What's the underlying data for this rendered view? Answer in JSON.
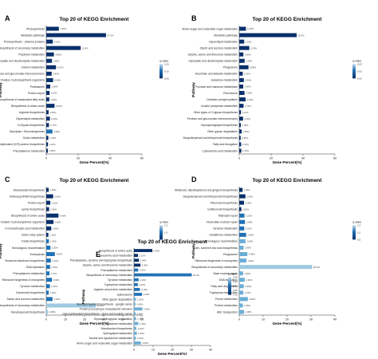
{
  "colors": {
    "dark": "#08306b",
    "mid": "#2171b5",
    "light": "#6baed6",
    "pale": "#9ecae1",
    "axis": "#333333"
  },
  "chart_data": [
    {
      "panel": "A",
      "type": "bar",
      "orientation": "horizontal",
      "title": "Top 20 of KEGG Enrichment",
      "xlabel": "Gene Percent(%)",
      "ylabel": "Pathway",
      "xlim": [
        0,
        60
      ],
      "xticks": [
        "0",
        "20",
        "40",
        "60"
      ],
      "legend_title": "q-value",
      "legend_ticks": [
        "0.05",
        "0.10",
        "0.15"
      ],
      "categories": [
        "Photosynthesis",
        "Metabolic pathways",
        "Photosynthesis - antenna proteins",
        "Biosynthesis of secondary metabolites",
        "Porphyrin metabolism",
        "Glyoxylate and dicarboxylate metabolism",
        "Carbon metabolism",
        "Pentose and glucuronate interconversions",
        "Carbon fixation in photosynthetic organisms",
        "Proteasome",
        "Protein export",
        "Biosynthesis of unsaturated fatty acids",
        "Biosynthesis of amino acids",
        "Arginine biosynthesis",
        "Glycerolipid metabolism",
        "N-Glycan biosynthesis",
        "Glycolysis / Gluconeogenesis",
        "Sulfur metabolism",
        "Glycosylphosphatidylinositol (GPI)-anchor biosynthesis",
        "Phenylalanine metabolism"
      ],
      "values": [
        7.9,
        37.5,
        4.1,
        21.6,
        4.8,
        3.6,
        6.1,
        3.4,
        4.3,
        2.5,
        2.1,
        1.9,
        5.2,
        1.5,
        2.3,
        1.7,
        3.9,
        1.3,
        1.1,
        1.0
      ],
      "value_labels": [
        "7.90%",
        "37.5%",
        "4.10%",
        "21.6%",
        "4.80%",
        "3.60%",
        "6.10%",
        "3.40%",
        "4.30%",
        "2.50%",
        "2.10%",
        "1.90%",
        "5.20%",
        "1.50%",
        "2.30%",
        "1.70%",
        "3.90%",
        "1.30%",
        "1.10%",
        "1.00%"
      ],
      "shades": [
        "dark",
        "dark",
        "dark",
        "dark",
        "dark",
        "dark",
        "dark",
        "dark",
        "dark",
        "dark",
        "dark",
        "dark",
        "dark",
        "dark",
        "dark",
        "dark",
        "mid",
        "dark",
        "dark",
        "dark"
      ]
    },
    {
      "panel": "B",
      "type": "bar",
      "orientation": "horizontal",
      "title": "Top 20 of KEGG Enrichment",
      "xlabel": "Gene Percent(%)",
      "ylabel": "Pathway",
      "xlim": [
        0,
        60
      ],
      "xticks": [
        "0",
        "20",
        "40",
        "60"
      ],
      "legend_title": "q-value",
      "legend_ticks": [
        "0.01",
        "0.02",
        "0.03"
      ],
      "categories": [
        "Amino sugar and nucleotide sugar metabolism",
        "Metabolic pathways",
        "Glycerolipid metabolism",
        "Starch and sucrose metabolism",
        "Glycine, serine and threonine metabolism",
        "Glyoxylate and dicarboxylate metabolism",
        "Phagosome",
        "Ascorbate and aldarate metabolism",
        "Galactose metabolism",
        "Fructose and mannose metabolism",
        "Peroxisome",
        "Oxidative phosphorylation",
        "Inositol phosphate metabolism",
        "Other types of O-glycan biosynthesis",
        "Pentose and glucuronate interconversions",
        "Glycosphingolipid biosynthesis",
        "Other glycan degradation",
        "Sesquiterpenoid and triterpenoid biosynthesis",
        "Fatty acid elongation",
        "Cyanoamino acid metabolism"
      ],
      "values": [
        4.2,
        36.0,
        3.1,
        6.3,
        2.6,
        3.4,
        5.8,
        2.2,
        2.9,
        2.5,
        3.3,
        4.0,
        2.7,
        1.1,
        2.4,
        1.0,
        1.5,
        0.9,
        1.2,
        1.3
      ],
      "value_labels": [
        "4.20%",
        "36.0%",
        "3.10%",
        "6.30%",
        "2.60%",
        "3.40%",
        "5.80%",
        "2.20%",
        "2.90%",
        "2.50%",
        "3.30%",
        "4.00%",
        "2.70%",
        "1.10%",
        "2.40%",
        "1.00%",
        "1.50%",
        "0.90%",
        "1.20%",
        "1.30%"
      ],
      "shades": [
        "dark",
        "dark",
        "dark",
        "dark",
        "dark",
        "dark",
        "dark",
        "dark",
        "dark",
        "dark",
        "dark",
        "dark",
        "dark",
        "dark",
        "dark",
        "dark",
        "dark",
        "dark",
        "dark",
        "dark"
      ]
    },
    {
      "panel": "C",
      "type": "bar",
      "orientation": "horizontal",
      "title": "Top 20 of KEGG Enrichment",
      "xlabel": "Gene Percent(%)",
      "ylabel": "Pathway",
      "xlim": [
        0,
        50
      ],
      "xticks": [
        "0",
        "10",
        "20",
        "30",
        "40",
        "50"
      ],
      "legend_title": "q-value",
      "legend_ticks": [
        "0.5",
        "1.0",
        "1.5"
      ],
      "categories": [
        "Monobactam biosynthesis",
        "Aminoacyl-tRNA biosynthesis",
        "Protein export",
        "Lysine biosynthesis",
        "Biosynthesis of amino acids",
        "Carbon fixation in photosynthetic organisms",
        "2-Oxocarboxylic acid metabolism",
        "Sulfur relay system",
        "Folate biosynthesis",
        "Homologous recombination",
        "Endocytosis",
        "Terpenoid backbone biosynthesis",
        "DNA replication",
        "Phenylalanine metabolism",
        "Ribosome biogenesis in eukaryotes",
        "Tyrosine metabolism",
        "Carotenoid biosynthesis",
        "Starch and sucrose metabolism",
        "Biosynthesis of secondary metabolites",
        "Monoterpenoid biosynthesis"
      ],
      "values": [
        1.3,
        3.6,
        2.1,
        1.5,
        6.4,
        3.8,
        2.6,
        1.1,
        1.4,
        2.2,
        4.5,
        2.4,
        2.0,
        1.7,
        3.0,
        1.9,
        1.3,
        3.3,
        25.9,
        0.9
      ],
      "value_labels": [
        "1.30%",
        "3.60%",
        "2.10%",
        "1.50%",
        "6.40%",
        "3.80%",
        "2.60%",
        "1.10%",
        "1.40%",
        "2.20%",
        "4.50%",
        "2.40%",
        "2.00%",
        "1.70%",
        "3.00%",
        "1.90%",
        "1.30%",
        "3.30%",
        "25.9%",
        "0.90%"
      ],
      "shades": [
        "dark",
        "dark",
        "dark",
        "dark",
        "dark",
        "dark",
        "dark",
        "dark",
        "mid",
        "mid",
        "mid",
        "mid",
        "mid",
        "mid",
        "mid",
        "mid",
        "mid",
        "mid",
        "pale",
        "pale"
      ]
    },
    {
      "panel": "D",
      "type": "bar",
      "orientation": "horizontal",
      "title": "Top 20 of KEGG Enrichment",
      "xlabel": "Gene Percent(%)",
      "ylabel": "Pathway",
      "xlim": [
        0,
        40
      ],
      "xticks": [
        "0",
        "10",
        "20",
        "30",
        "40"
      ],
      "legend_title": "q-value",
      "legend_ticks": [
        "0.5",
        "1.0",
        "1.5"
      ],
      "categories": [
        "Stilbenoid, diarylheptanoid and gingerol biosynthesis",
        "Sesquiterpenoid and triterpenoid biosynthesis",
        "Flavonoid biosynthesis",
        "Isoflavonoid biosynthesis",
        "Mismatch repair",
        "Nucleotide excision repair",
        "Tyrosine metabolism",
        "Glutathione metabolism",
        "Homologous recombination",
        "Cutin, suberine and wax biosynthesis",
        "Phagosome",
        "Ribosome biogenesis in eukaryotes",
        "Biosynthesis of secondary metabolites",
        "Base excision repair",
        "DNA replication",
        "Fatty acid degradation",
        "Tryptophan metabolism",
        "Purine metabolism",
        "Proline metabolism",
        "ABC transporters"
      ],
      "values": [
        1.4,
        2.6,
        2.0,
        0.9,
        2.2,
        2.4,
        2.1,
        2.9,
        2.6,
        1.8,
        3.4,
        3.0,
        30.5,
        1.6,
        2.3,
        1.9,
        1.7,
        3.6,
        1.5,
        2.0
      ],
      "value_labels": [
        "1.40%",
        "2.60%",
        "2.00%",
        "0.90%",
        "2.20%",
        "2.40%",
        "2.10%",
        "2.90%",
        "2.60%",
        "1.80%",
        "3.40%",
        "3.00%",
        "30.5%",
        "1.60%",
        "2.30%",
        "1.90%",
        "1.70%",
        "3.60%",
        "1.50%",
        "2.00%"
      ],
      "shades": [
        "dark",
        "dark",
        "dark",
        "dark",
        "mid",
        "mid",
        "mid",
        "mid",
        "light",
        "light",
        "light",
        "light",
        "pale",
        "light",
        "light",
        "light",
        "light",
        "light",
        "light",
        "light"
      ]
    },
    {
      "panel": "E",
      "type": "bar",
      "orientation": "horizontal",
      "title": "Top 20 of KEGG Enrichment",
      "xlabel": "Gene Percent(%)",
      "ylabel": "Pathway",
      "xlim": [
        0,
        40
      ],
      "xticks": [
        "0",
        "10",
        "20",
        "30",
        "40"
      ],
      "legend_title": "q-value",
      "legend_ticks": [
        "0.75",
        "0.80",
        "0.85",
        "0.90",
        "0.95"
      ],
      "categories": [
        "Biosynthesis of amino acids",
        "Cyanoamino acid metabolism",
        "Phenylalanine, tyrosine and tryptophan biosynthesis",
        "Glycine, serine and threonine metabolism",
        "Phenylalanine metabolism",
        "Biosynthesis of secondary metabolites",
        "Tyrosine metabolism",
        "Tryptophan metabolism",
        "Arginine and proline metabolism",
        "Spliceosome",
        "Other glycan degradation",
        "Glycosphingolipid biosynthesis - ganglio series",
        "Protein processing in endoplasmic reticulum",
        "Glycosphingolipid biosynthesis - globo and isoglobo series",
        "Glycosaminoglycan degradation",
        "Galactose metabolism",
        "Monobactam biosynthesis",
        "Sphingolipid metabolism",
        "Taurine and hypotaurine metabolism",
        "Amino sugar and nucleotide sugar metabolism"
      ],
      "values": [
        9.6,
        2.1,
        2.6,
        3.4,
        2.2,
        30.2,
        2.4,
        2.0,
        3.1,
        4.2,
        1.0,
        0.8,
        4.4,
        0.9,
        1.1,
        2.3,
        1.2,
        1.5,
        1.0,
        3.6
      ],
      "value_labels": [
        "9.60%",
        "2.10%",
        "2.60%",
        "3.40%",
        "2.20%",
        "30.2%",
        "2.40%",
        "2.00%",
        "3.10%",
        "4.20%",
        "1.00%",
        "0.80%",
        "4.40%",
        "0.90%",
        "1.10%",
        "2.30%",
        "1.20%",
        "1.50%",
        "1.00%",
        "3.60%"
      ],
      "shades": [
        "dark",
        "dark",
        "dark",
        "dark",
        "mid",
        "mid",
        "mid",
        "mid",
        "mid",
        "mid",
        "light",
        "light",
        "light",
        "light",
        "light",
        "light",
        "light",
        "light",
        "light",
        "light"
      ]
    }
  ]
}
